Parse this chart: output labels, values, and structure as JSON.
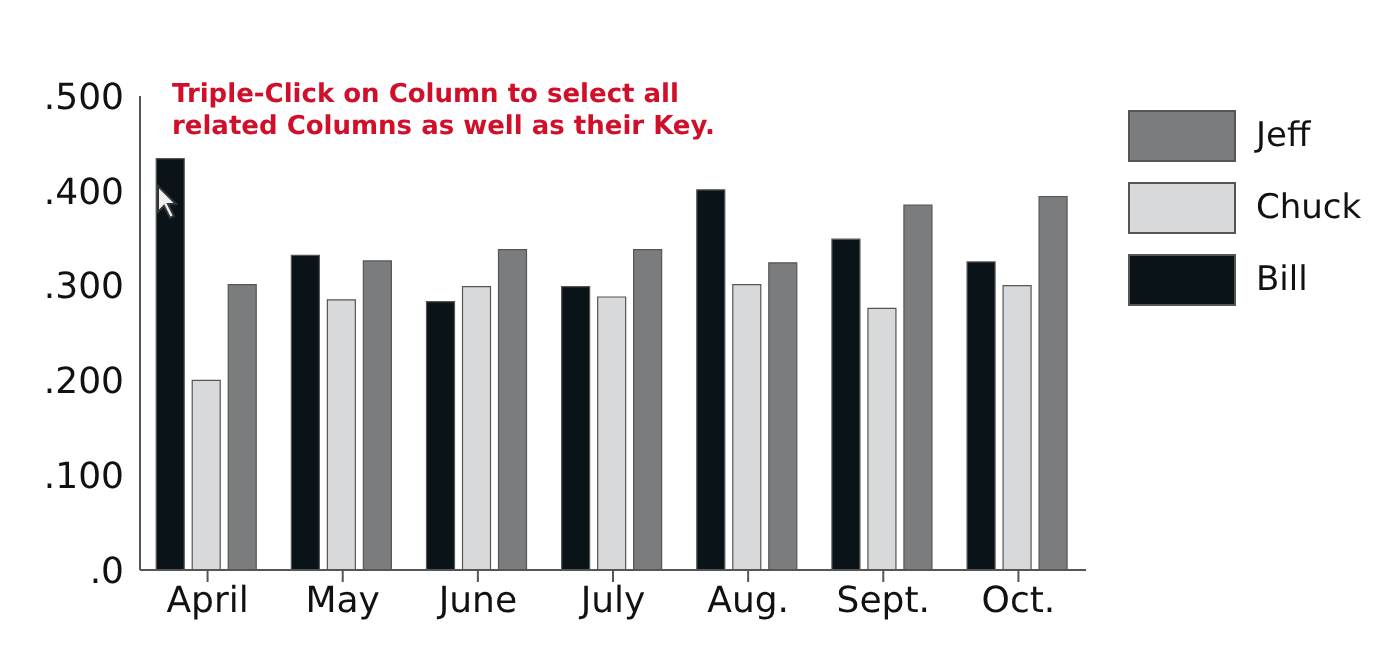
{
  "chart_data": {
    "type": "bar",
    "categories": [
      "April",
      "May",
      "June",
      "July",
      "Aug.",
      "Sept.",
      "Oct."
    ],
    "series": [
      {
        "name": "Bill",
        "color": "#0a1418",
        "values": [
          0.434,
          0.332,
          0.283,
          0.299,
          0.401,
          0.349,
          0.325
        ]
      },
      {
        "name": "Chuck",
        "color": "#d8d9da",
        "values": [
          0.2,
          0.285,
          0.299,
          0.288,
          0.301,
          0.276,
          0.3
        ]
      },
      {
        "name": "Jeff",
        "color": "#7a7c7e",
        "values": [
          0.301,
          0.326,
          0.338,
          0.338,
          0.324,
          0.385,
          0.394
        ]
      }
    ],
    "ylim": [
      0,
      0.5
    ],
    "yticks": [
      {
        "value": 0,
        "label": ".0"
      },
      {
        "value": 0.1,
        "label": ".100"
      },
      {
        "value": 0.2,
        "label": ".200"
      },
      {
        "value": 0.3,
        "label": ".300"
      },
      {
        "value": 0.4,
        "label": ".400"
      },
      {
        "value": 0.5,
        "label": ".500"
      }
    ],
    "annotations": [
      "Triple-Click on Column to select all related Columns as well as their Key."
    ],
    "grid": false,
    "legend": "right"
  }
}
